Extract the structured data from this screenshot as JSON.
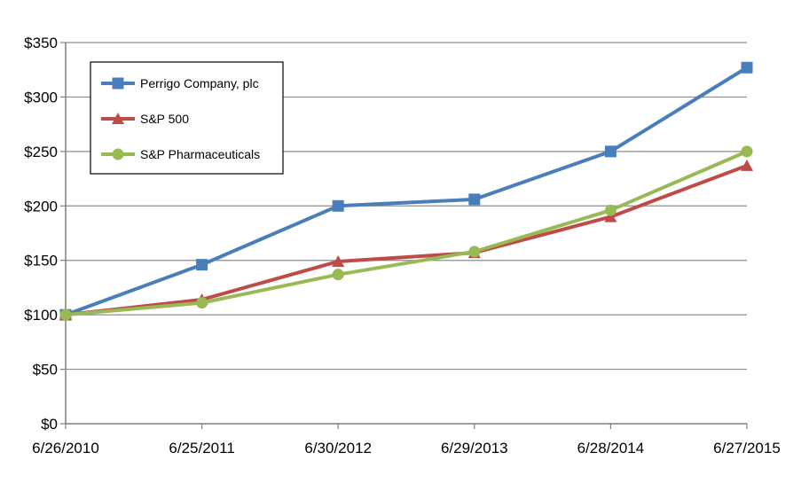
{
  "chart_data": {
    "type": "line",
    "title": "",
    "xlabel": "",
    "ylabel": "",
    "categories": [
      "6/26/2010",
      "6/25/2011",
      "6/30/2012",
      "6/29/2013",
      "6/28/2014",
      "6/27/2015"
    ],
    "ylim": [
      0,
      350
    ],
    "yticks": [
      0,
      50,
      100,
      150,
      200,
      250,
      300,
      350
    ],
    "ytick_labels": [
      "$0",
      "$50",
      "$100",
      "$150",
      "$200",
      "$250",
      "$300",
      "$350"
    ],
    "grid": true,
    "legend_position": "top-left",
    "series": [
      {
        "name": "Perrigo Company, plc",
        "color": "#4A7EBB",
        "marker": "square",
        "values": [
          100,
          146,
          200,
          206,
          250,
          327
        ]
      },
      {
        "name": "S&P 500",
        "color": "#BE4B48",
        "marker": "triangle",
        "values": [
          100,
          114,
          149,
          157,
          190,
          237
        ]
      },
      {
        "name": "S&P Pharmaceuticals",
        "color": "#98B954",
        "marker": "circle",
        "values": [
          100,
          111,
          137,
          158,
          196,
          250
        ]
      }
    ]
  }
}
